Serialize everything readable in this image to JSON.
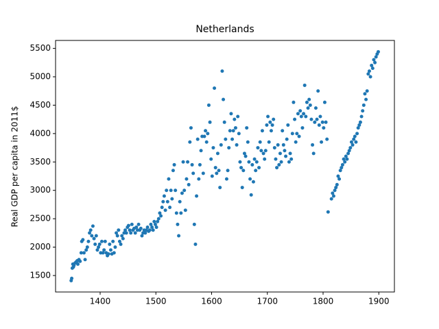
{
  "chart_data": {
    "type": "scatter",
    "title": "Netherlands",
    "y_label": "Real GDP per capita in 2011$",
    "color": "#1f77b4",
    "xlim": [
      1320,
      1928
    ],
    "ylim": [
      1210,
      5640
    ],
    "xticks": [
      1400,
      1500,
      1600,
      1700,
      1800,
      1900
    ],
    "yticks": [
      1500,
      2000,
      2500,
      3000,
      3500,
      4000,
      4500,
      5000,
      5500
    ],
    "x": [
      1348,
      1349,
      1350,
      1351,
      1352,
      1353,
      1355,
      1357,
      1359,
      1360,
      1362,
      1364,
      1366,
      1367,
      1369,
      1371,
      1373,
      1375,
      1377,
      1379,
      1381,
      1383,
      1385,
      1387,
      1389,
      1391,
      1393,
      1395,
      1397,
      1399,
      1401,
      1403,
      1405,
      1407,
      1409,
      1411,
      1413,
      1415,
      1417,
      1419,
      1421,
      1423,
      1425,
      1427,
      1429,
      1431,
      1433,
      1435,
      1437,
      1439,
      1441,
      1443,
      1445,
      1447,
      1449,
      1451,
      1453,
      1455,
      1457,
      1459,
      1461,
      1463,
      1465,
      1467,
      1469,
      1471,
      1473,
      1475,
      1477,
      1479,
      1481,
      1483,
      1485,
      1487,
      1489,
      1491,
      1493,
      1495,
      1497,
      1499,
      1501,
      1503,
      1505,
      1507,
      1509,
      1511,
      1513,
      1515,
      1517,
      1519,
      1521,
      1523,
      1525,
      1527,
      1529,
      1531,
      1533,
      1535,
      1537,
      1539,
      1541,
      1543,
      1545,
      1547,
      1549,
      1551,
      1553,
      1555,
      1557,
      1559,
      1561,
      1563,
      1565,
      1567,
      1569,
      1571,
      1573,
      1575,
      1577,
      1579,
      1581,
      1583,
      1585,
      1587,
      1589,
      1591,
      1593,
      1595,
      1597,
      1599,
      1601,
      1603,
      1605,
      1607,
      1609,
      1611,
      1613,
      1615,
      1617,
      1619,
      1621,
      1623,
      1625,
      1627,
      1629,
      1631,
      1633,
      1635,
      1637,
      1639,
      1641,
      1643,
      1645,
      1647,
      1649,
      1651,
      1653,
      1655,
      1657,
      1659,
      1661,
      1663,
      1665,
      1667,
      1669,
      1671,
      1673,
      1675,
      1677,
      1679,
      1681,
      1683,
      1685,
      1687,
      1689,
      1691,
      1693,
      1695,
      1697,
      1699,
      1701,
      1703,
      1705,
      1707,
      1709,
      1711,
      1713,
      1715,
      1717,
      1719,
      1721,
      1723,
      1725,
      1727,
      1729,
      1731,
      1733,
      1735,
      1737,
      1739,
      1741,
      1743,
      1745,
      1747,
      1749,
      1751,
      1753,
      1755,
      1757,
      1759,
      1761,
      1763,
      1765,
      1767,
      1769,
      1771,
      1773,
      1775,
      1777,
      1779,
      1781,
      1783,
      1785,
      1787,
      1789,
      1791,
      1793,
      1795,
      1797,
      1799,
      1801,
      1803,
      1805,
      1807,
      1809,
      1815,
      1817,
      1819,
      1821,
      1823,
      1825,
      1827,
      1829,
      1831,
      1833,
      1835,
      1837,
      1839,
      1841,
      1843,
      1845,
      1847,
      1849,
      1851,
      1853,
      1855,
      1857,
      1859,
      1861,
      1863,
      1865,
      1867,
      1869,
      1871,
      1873,
      1875,
      1877,
      1879,
      1881,
      1883,
      1885,
      1887,
      1889,
      1891,
      1893,
      1895,
      1897,
      1899
    ],
    "values": [
      1410,
      1450,
      1630,
      1700,
      1650,
      1680,
      1720,
      1740,
      1760,
      1700,
      1780,
      1750,
      1900,
      2100,
      2130,
      1900,
      1780,
      1950,
      2000,
      2100,
      2250,
      2300,
      2200,
      2370,
      2150,
      2050,
      2200,
      1950,
      2000,
      2050,
      1900,
      2100,
      1900,
      1950,
      2100,
      1900,
      1850,
      1880,
      2050,
      1950,
      1880,
      2100,
      1900,
      2000,
      2250,
      2200,
      2300,
      2100,
      2050,
      2200,
      2150,
      2250,
      2300,
      2250,
      2350,
      2380,
      2300,
      2250,
      2400,
      2300,
      2330,
      2250,
      2350,
      2300,
      2400,
      2300,
      2330,
      2200,
      2250,
      2300,
      2250,
      2300,
      2350,
      2280,
      2300,
      2400,
      2350,
      2300,
      2450,
      2400,
      2350,
      2450,
      2500,
      2600,
      2550,
      2700,
      2800,
      2900,
      2650,
      3000,
      2800,
      3200,
      2700,
      3000,
      2850,
      3350,
      3450,
      3000,
      2600,
      2400,
      2200,
      2800,
      2600,
      2950,
      3500,
      3000,
      2650,
      3200,
      3500,
      3100,
      3850,
      4100,
      3450,
      3300,
      2400,
      2050,
      2900,
      3900,
      3200,
      3450,
      3700,
      3950,
      3300,
      3950,
      4050,
      3850,
      4000,
      4500,
      4200,
      3550,
      3250,
      3750,
      4800,
      3400,
      3300,
      3650,
      3350,
      3050,
      3800,
      5100,
      4600,
      4200,
      3900,
      3200,
      3350,
      3750,
      4050,
      4350,
      3900,
      4050,
      4250,
      4100,
      3800,
      4300,
      4000,
      3500,
      3400,
      3050,
      3350,
      3650,
      3600,
      4100,
      3850,
      3500,
      3200,
      2920,
      3450,
      3150,
      3550,
      3350,
      3500,
      3750,
      3400,
      3850,
      3700,
      4050,
      3650,
      3550,
      3700,
      4150,
      4300,
      3850,
      4200,
      4050,
      4150,
      4250,
      3750,
      3550,
      3400,
      3800,
      3450,
      3650,
      3500,
      4050,
      3800,
      3700,
      3600,
      3900,
      4150,
      3500,
      3650,
      3550,
      4000,
      4550,
      4250,
      3850,
      4000,
      4350,
      3950,
      4400,
      4300,
      4100,
      4350,
      4850,
      4300,
      4550,
      4450,
      4600,
      4500,
      4250,
      3800,
      3650,
      4200,
      4450,
      4250,
      4750,
      4150,
      4300,
      3850,
      4200,
      4100,
      4550,
      4200,
      3900,
      2620,
      2850,
      2950,
      2900,
      3000,
      3050,
      3100,
      3250,
      3200,
      3350,
      3400,
      3450,
      3550,
      3500,
      3600,
      3550,
      3650,
      3700,
      3750,
      3850,
      3800,
      3900,
      3950,
      3850,
      4000,
      4100,
      4150,
      4200,
      4300,
      4400,
      4500,
      4700,
      4600,
      4750,
      5050,
      5100,
      5000,
      5200,
      5150,
      5300,
      5250,
      5350,
      5400,
      5440
    ]
  }
}
